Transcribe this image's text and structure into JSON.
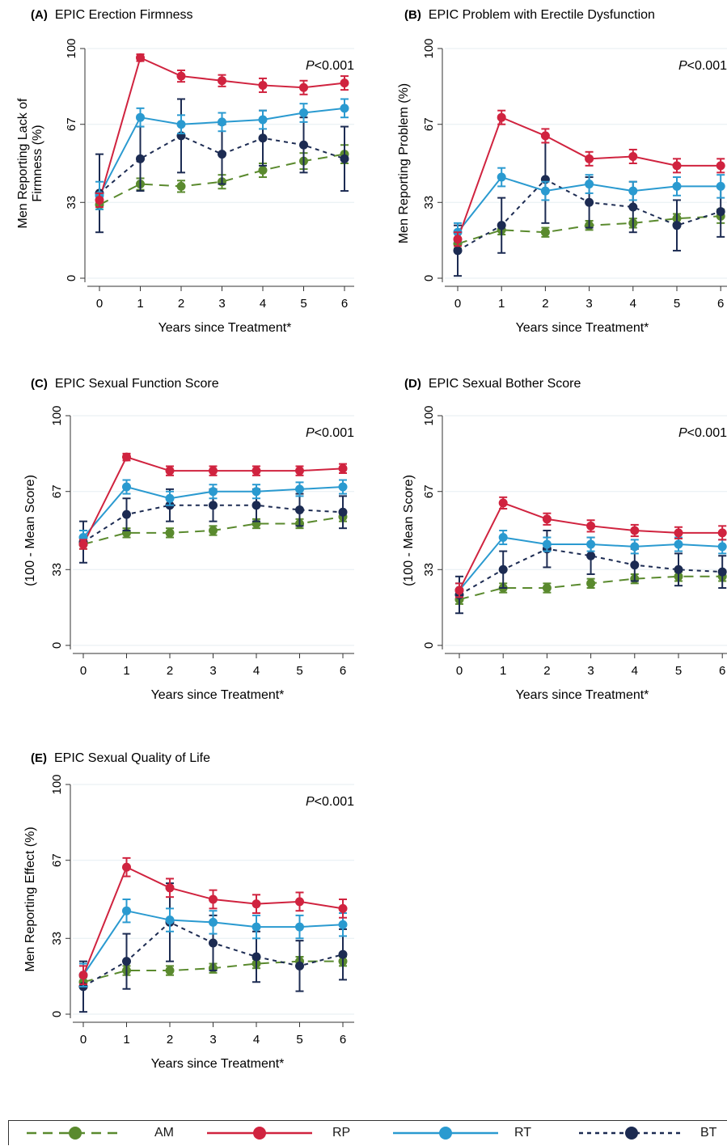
{
  "figure": {
    "legend": [
      {
        "key": "AM",
        "color": "#5a8a2e",
        "dash": "12,8"
      },
      {
        "key": "RP",
        "color": "#d0233f",
        "dash": ""
      },
      {
        "key": "RT",
        "color": "#2a9ad0",
        "dash": ""
      },
      {
        "key": "BT",
        "color": "#1c2b52",
        "dash": "5,5"
      }
    ]
  },
  "chart_data": [
    {
      "id": "A",
      "type": "line",
      "letter": "(A)",
      "title": "EPIC Erection Firmness",
      "ylabel": "Men Reporting Lack of Firmness (%)",
      "ylabel_lines": [
        "Men Reporting Lack of",
        "Firmness (%)"
      ],
      "xlabel": "Years since Treatment*",
      "pvalue": "P<0.001",
      "x": [
        0,
        1,
        2,
        3,
        4,
        5,
        6
      ],
      "yticks": [
        0,
        33,
        67,
        100
      ],
      "ylim": [
        0,
        100
      ],
      "series": [
        {
          "name": "AM",
          "values": [
            32,
            41,
            40,
            42,
            47,
            51,
            54
          ],
          "err": [
            2,
            2.5,
            2.5,
            3,
            3,
            3.5,
            4
          ]
        },
        {
          "name": "RP",
          "values": [
            34,
            96,
            88,
            86,
            84,
            83,
            85
          ],
          "err": [
            3,
            1.5,
            2.5,
            2.5,
            3,
            3,
            3
          ]
        },
        {
          "name": "RT",
          "values": [
            36,
            70,
            67,
            68,
            69,
            72,
            74
          ],
          "err": [
            6,
            4,
            4,
            4,
            4,
            4,
            4
          ]
        },
        {
          "name": "BT",
          "values": [
            37,
            52,
            62,
            54,
            61,
            58,
            52
          ],
          "err": [
            17,
            14,
            16,
            13,
            12,
            12,
            14
          ]
        }
      ]
    },
    {
      "id": "B",
      "type": "line",
      "letter": "(B)",
      "title": "EPIC Problem with Erectile Dysfunction",
      "ylabel": "Men Reporting Problem (%)",
      "ylabel_lines": [
        "Men Reporting Problem (%)"
      ],
      "xlabel": "Years since Treatment*",
      "pvalue": "P<0.001",
      "x": [
        0,
        1,
        2,
        3,
        4,
        5,
        6
      ],
      "yticks": [
        0,
        33,
        67,
        100
      ],
      "ylim": [
        0,
        100
      ],
      "series": [
        {
          "name": "AM",
          "values": [
            15,
            21,
            20,
            23,
            24,
            26,
            27
          ],
          "err": [
            2,
            2,
            2,
            2,
            2,
            2,
            3
          ]
        },
        {
          "name": "RP",
          "values": [
            17,
            70,
            62,
            52,
            53,
            49,
            49
          ],
          "err": [
            3,
            3,
            3,
            3,
            3,
            3,
            3
          ]
        },
        {
          "name": "RT",
          "values": [
            20,
            44,
            38,
            41,
            38,
            40,
            40
          ],
          "err": [
            4,
            4,
            4,
            4,
            4,
            4,
            5
          ]
        },
        {
          "name": "BT",
          "values": [
            12,
            23,
            43,
            33,
            31,
            23,
            29
          ],
          "err": [
            11,
            12,
            19,
            11,
            11,
            11,
            11
          ]
        }
      ]
    },
    {
      "id": "C",
      "type": "line",
      "letter": "(C)",
      "title": "EPIC Sexual Function Score",
      "ylabel": "(100 - Mean Score)",
      "ylabel_lines": [
        "(100 - Mean Score)"
      ],
      "xlabel": "Years since Treatment*",
      "pvalue": "P<0.001",
      "x": [
        0,
        1,
        2,
        3,
        4,
        5,
        6
      ],
      "yticks": [
        0,
        33,
        67,
        100
      ],
      "ylim": [
        0,
        100
      ],
      "series": [
        {
          "name": "AM",
          "values": [
            44,
            49,
            49,
            50,
            53,
            53,
            56
          ],
          "err": [
            2,
            2,
            2,
            2,
            2,
            2,
            2
          ]
        },
        {
          "name": "RP",
          "values": [
            44,
            82,
            76,
            76,
            76,
            76,
            77
          ],
          "err": [
            2,
            1.5,
            2,
            2,
            2,
            2,
            2
          ]
        },
        {
          "name": "RT",
          "values": [
            47,
            69,
            64,
            67,
            67,
            68,
            69
          ],
          "err": [
            3,
            3,
            3,
            3,
            3,
            3,
            3
          ]
        },
        {
          "name": "BT",
          "values": [
            45,
            57,
            61,
            61,
            61,
            59,
            58
          ],
          "err": [
            9,
            7,
            7,
            7,
            7,
            7,
            7
          ]
        }
      ]
    },
    {
      "id": "D",
      "type": "line",
      "letter": "(D)",
      "title": "EPIC Sexual Bother Score",
      "ylabel": "(100 - Mean Score)",
      "ylabel_lines": [
        "(100 - Mean Score)"
      ],
      "xlabel": "Years since Treatment*",
      "pvalue": "P<0.001",
      "x": [
        0,
        1,
        2,
        3,
        4,
        5,
        6
      ],
      "yticks": [
        0,
        33,
        67,
        100
      ],
      "ylim": [
        0,
        100
      ],
      "series": [
        {
          "name": "AM",
          "values": [
            20,
            25,
            25,
            27,
            29,
            30,
            30
          ],
          "err": [
            2,
            2,
            2,
            2,
            2,
            2,
            2
          ]
        },
        {
          "name": "RP",
          "values": [
            24,
            62,
            55,
            52,
            50,
            49,
            49
          ],
          "err": [
            3,
            2.5,
            2.5,
            2.5,
            2.5,
            2.5,
            3
          ]
        },
        {
          "name": "RT",
          "values": [
            24,
            47,
            44,
            44,
            43,
            44,
            43
          ],
          "err": [
            3,
            3,
            3,
            3,
            3,
            3,
            3
          ]
        },
        {
          "name": "BT",
          "values": [
            22,
            33,
            42,
            39,
            35,
            33,
            32
          ],
          "err": [
            8,
            8,
            8,
            8,
            7,
            7,
            7
          ]
        }
      ]
    },
    {
      "id": "E",
      "type": "line",
      "letter": "(E)",
      "title": "EPIC Sexual Quality of Life",
      "ylabel": "Men Reporting Effect (%)",
      "ylabel_lines": [
        "Men Reporting Effect (%)"
      ],
      "xlabel": "Years since Treatment*",
      "pvalue": "P<0.001",
      "x": [
        0,
        1,
        2,
        3,
        4,
        5,
        6
      ],
      "yticks": [
        0,
        33,
        67,
        100
      ],
      "ylim": [
        0,
        100
      ],
      "series": [
        {
          "name": "AM",
          "values": [
            14,
            19,
            19,
            20,
            22,
            23,
            23
          ],
          "err": [
            2,
            2,
            2,
            2,
            2,
            2,
            2
          ]
        },
        {
          "name": "RP",
          "values": [
            17,
            64,
            55,
            50,
            48,
            49,
            46
          ],
          "err": [
            4,
            4,
            4,
            4,
            4,
            4,
            4
          ]
        },
        {
          "name": "RT",
          "values": [
            17,
            45,
            41,
            40,
            38,
            38,
            39
          ],
          "err": [
            5,
            5,
            5,
            5,
            5,
            5,
            5
          ]
        },
        {
          "name": "BT",
          "values": [
            12,
            23,
            40,
            31,
            25,
            21,
            26
          ],
          "err": [
            11,
            12,
            17,
            12,
            11,
            11,
            11
          ]
        }
      ]
    }
  ]
}
